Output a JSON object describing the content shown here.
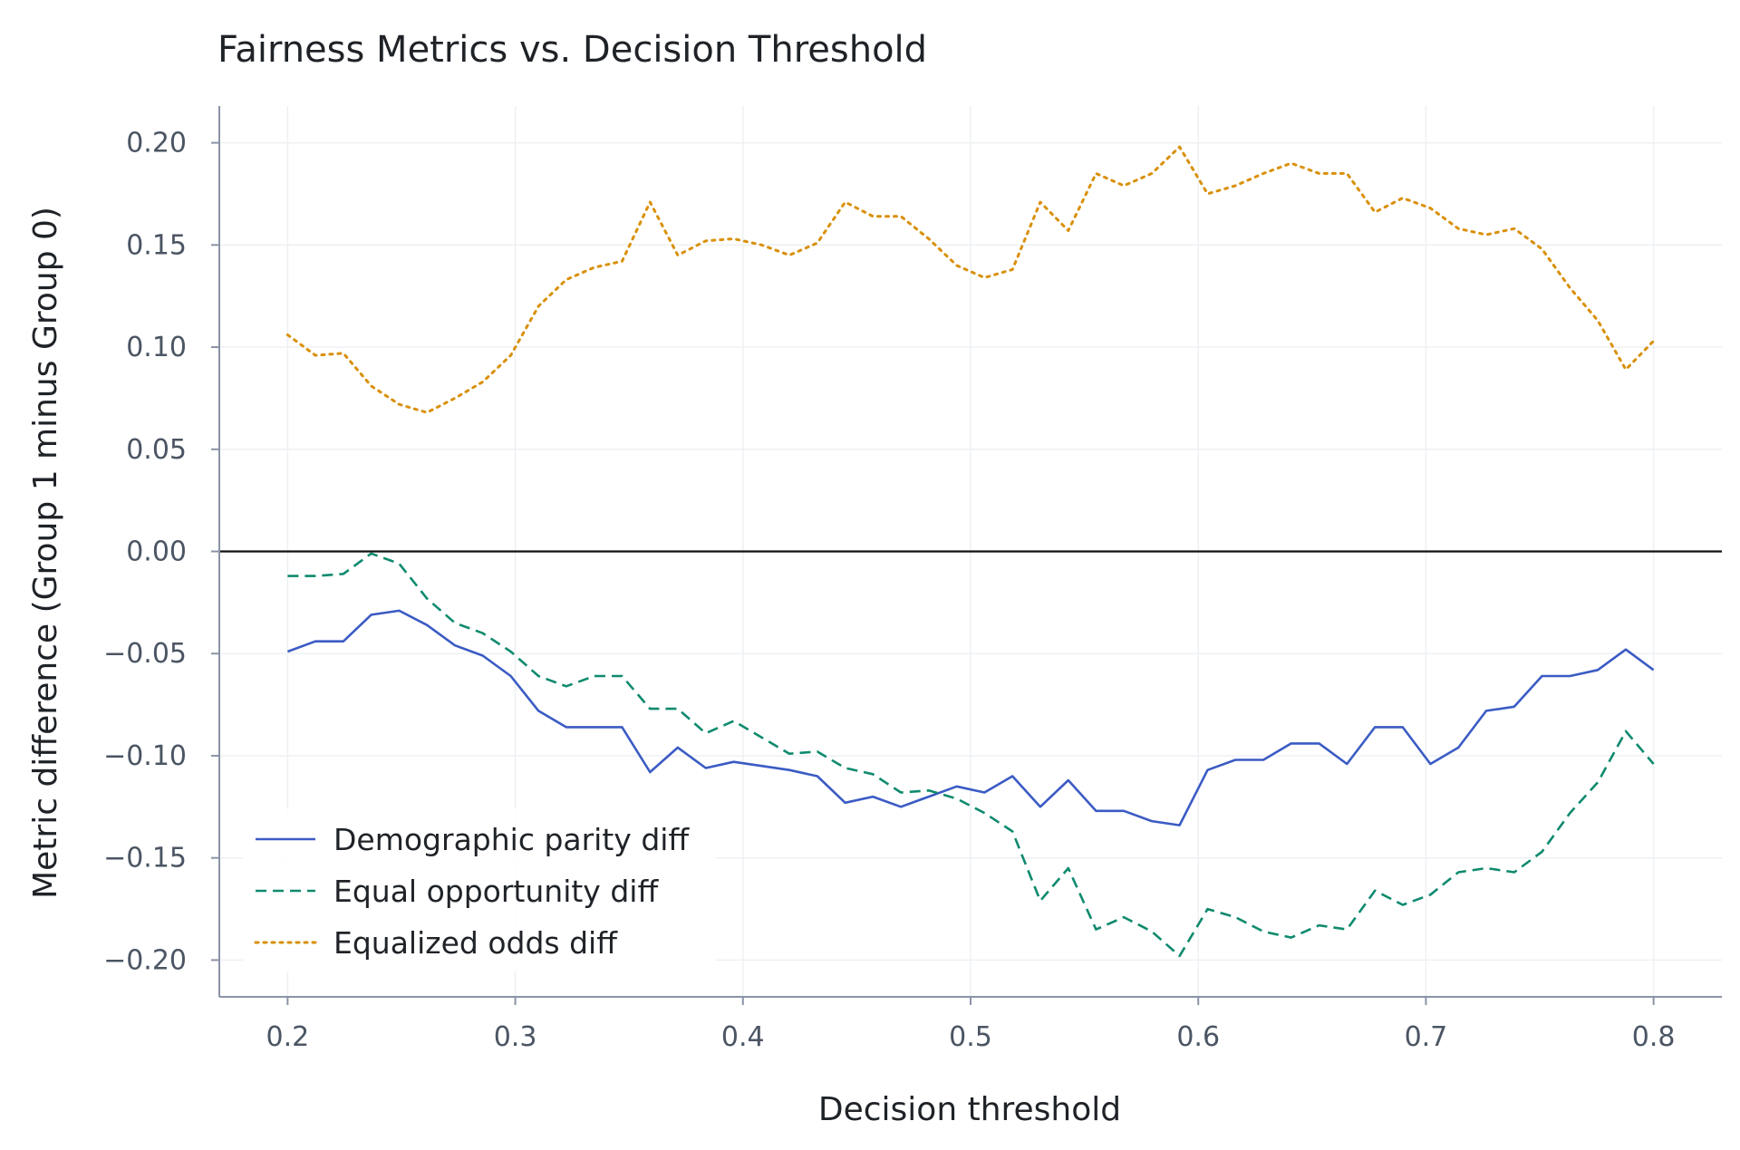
{
  "chart_data": {
    "type": "line",
    "title": "Fairness Metrics vs. Decision Threshold",
    "xlabel": "Decision threshold",
    "ylabel": "Metric difference (Group 1 minus Group 0)",
    "xlim": [
      0.17,
      0.83
    ],
    "ylim": [
      -0.218,
      0.218
    ],
    "xticks": [
      0.2,
      0.3,
      0.4,
      0.5,
      0.6,
      0.7,
      0.8
    ],
    "xtick_labels": [
      "0.2",
      "0.3",
      "0.4",
      "0.5",
      "0.6",
      "0.7",
      "0.8"
    ],
    "yticks": [
      0.2,
      0.15,
      0.1,
      0.05,
      0.0,
      -0.05,
      -0.1,
      -0.15,
      -0.2
    ],
    "ytick_labels": [
      "0.20",
      "0.15",
      "0.10",
      "0.05",
      "0.00",
      "−0.05",
      "−0.10",
      "−0.15",
      "−0.20"
    ],
    "grid": true,
    "reference_line_y": 0.0,
    "legend_position": "lower-left",
    "x": [
      0.2,
      0.2122,
      0.2245,
      0.2367,
      0.249,
      0.2612,
      0.2735,
      0.2857,
      0.298,
      0.3102,
      0.3224,
      0.3347,
      0.3469,
      0.3592,
      0.3714,
      0.3837,
      0.3959,
      0.4082,
      0.4204,
      0.4327,
      0.4449,
      0.4571,
      0.4694,
      0.4816,
      0.4939,
      0.5061,
      0.5184,
      0.5306,
      0.5429,
      0.5551,
      0.5673,
      0.5796,
      0.5918,
      0.6041,
      0.6163,
      0.6286,
      0.6408,
      0.6531,
      0.6653,
      0.6776,
      0.6898,
      0.702,
      0.7143,
      0.7265,
      0.7388,
      0.751,
      0.7633,
      0.7755,
      0.7878,
      0.8
    ],
    "series": [
      {
        "name": "Demographic parity diff",
        "color": "#3b5bc4",
        "dash": "solid",
        "values": [
          -0.049,
          -0.044,
          -0.044,
          -0.031,
          -0.029,
          -0.036,
          -0.046,
          -0.051,
          -0.061,
          -0.078,
          -0.086,
          -0.086,
          -0.086,
          -0.108,
          -0.096,
          -0.106,
          -0.103,
          -0.105,
          -0.107,
          -0.11,
          -0.123,
          -0.12,
          -0.125,
          -0.12,
          -0.115,
          -0.118,
          -0.11,
          -0.125,
          -0.112,
          -0.127,
          -0.127,
          -0.132,
          -0.134,
          -0.107,
          -0.102,
          -0.102,
          -0.094,
          -0.094,
          -0.104,
          -0.086,
          -0.086,
          -0.104,
          -0.096,
          -0.078,
          -0.076,
          -0.061,
          -0.061,
          -0.058,
          -0.048,
          -0.058
        ]
      },
      {
        "name": "Equal opportunity diff",
        "color": "#0f8a6e",
        "dash": "dashed",
        "values": [
          -0.012,
          -0.012,
          -0.011,
          -0.001,
          -0.006,
          -0.023,
          -0.035,
          -0.04,
          -0.049,
          -0.061,
          -0.066,
          -0.061,
          -0.061,
          -0.077,
          -0.077,
          -0.089,
          -0.083,
          -0.091,
          -0.099,
          -0.098,
          -0.106,
          -0.109,
          -0.118,
          -0.117,
          -0.121,
          -0.128,
          -0.137,
          -0.171,
          -0.155,
          -0.185,
          -0.179,
          -0.186,
          -0.198,
          -0.175,
          -0.179,
          -0.186,
          -0.189,
          -0.183,
          -0.185,
          -0.166,
          -0.173,
          -0.168,
          -0.157,
          -0.155,
          -0.157,
          -0.147,
          -0.128,
          -0.113,
          -0.088,
          -0.104
        ]
      },
      {
        "name": "Equalized odds diff",
        "color": "#d9900a",
        "dash": "dotted",
        "values": [
          0.106,
          0.096,
          0.097,
          0.081,
          0.072,
          0.068,
          0.075,
          0.083,
          0.096,
          0.12,
          0.133,
          0.139,
          0.142,
          0.171,
          0.145,
          0.152,
          0.153,
          0.15,
          0.145,
          0.151,
          0.171,
          0.164,
          0.164,
          0.153,
          0.14,
          0.134,
          0.138,
          0.171,
          0.157,
          0.185,
          0.179,
          0.185,
          0.198,
          0.175,
          0.179,
          0.185,
          0.19,
          0.185,
          0.185,
          0.166,
          0.173,
          0.168,
          0.158,
          0.155,
          0.158,
          0.148,
          0.129,
          0.113,
          0.089,
          0.103
        ]
      }
    ]
  }
}
